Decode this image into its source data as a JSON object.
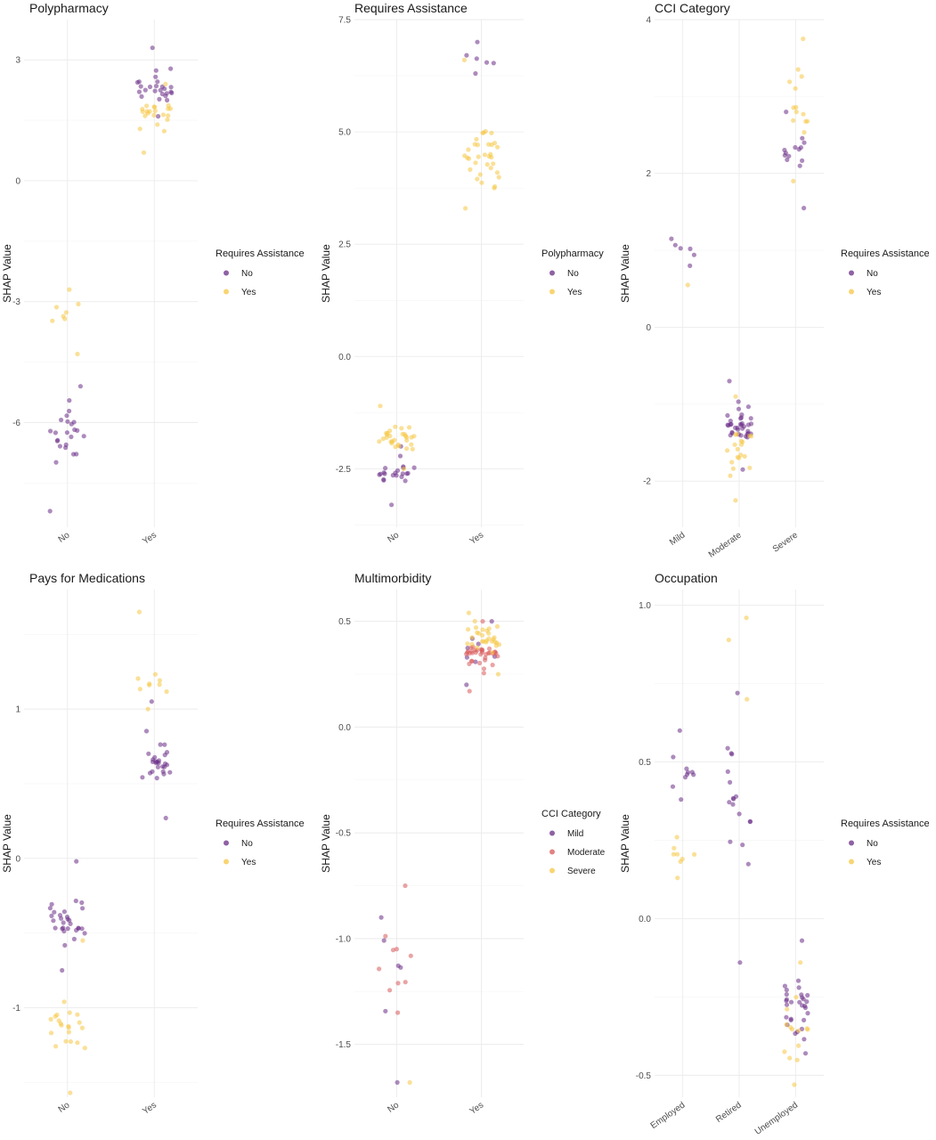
{
  "palette": {
    "purple": "#6a2c86",
    "yellow": "#f6c744",
    "salmon": "#d9595b",
    "point_opacity": 0.55
  },
  "axis_title_y": "SHAP Value",
  "chart_data": [
    {
      "type": "scatter",
      "title": "Polypharmacy",
      "ylabel": "SHAP Value",
      "categories": [
        "No",
        "Yes"
      ],
      "ylim": [
        -8.6,
        4.0
      ],
      "yticks": [
        3,
        0,
        -3,
        -6
      ],
      "ytick_labels": [
        "3",
        "0",
        "-3",
        "-6"
      ],
      "legend": {
        "title": "Requires Assistance",
        "items": [
          "No",
          "Yes"
        ],
        "colors": [
          "#6a2c86",
          "#f6c744"
        ]
      },
      "series": [
        {
          "category": "No",
          "group": "No",
          "n": 24,
          "ymin": -8.2,
          "ymax": -5.1,
          "center": -6.2
        },
        {
          "category": "No",
          "group": "Yes",
          "n": 8,
          "ymin": -4.3,
          "ymax": -2.7,
          "center": -3.2
        },
        {
          "category": "Yes",
          "group": "No",
          "n": 26,
          "ymin": 1.6,
          "ymax": 3.3,
          "center": 2.3
        },
        {
          "category": "Yes",
          "group": "Yes",
          "n": 22,
          "ymin": 0.7,
          "ymax": 2.4,
          "center": 1.6
        }
      ]
    },
    {
      "type": "scatter",
      "title": "Requires Assistance",
      "ylabel": "SHAP Value",
      "categories": [
        "No",
        "Yes"
      ],
      "ylim": [
        -3.8,
        7.5
      ],
      "yticks": [
        7.5,
        5.0,
        2.5,
        0.0,
        -2.5
      ],
      "ytick_labels": [
        "7.5",
        "5.0",
        "2.5",
        "0.0",
        "-2.5"
      ],
      "legend": {
        "title": "Polypharmacy",
        "items": [
          "No",
          "Yes"
        ],
        "colors": [
          "#6a2c86",
          "#f6c744"
        ]
      },
      "series": [
        {
          "category": "No",
          "group": "No",
          "n": 22,
          "ymin": -3.3,
          "ymax": -2.0,
          "center": -2.6
        },
        {
          "category": "No",
          "group": "Yes",
          "n": 30,
          "ymin": -2.5,
          "ymax": -1.1,
          "center": -1.8
        },
        {
          "category": "Yes",
          "group": "No",
          "n": 6,
          "ymin": 6.3,
          "ymax": 7.0,
          "center": 6.6
        },
        {
          "category": "Yes",
          "group": "Yes",
          "n": 34,
          "ymin": 3.3,
          "ymax": 6.6,
          "center": 4.6
        }
      ]
    },
    {
      "type": "scatter",
      "title": "CCI Category",
      "ylabel": "SHAP Value",
      "categories": [
        "Mild",
        "Moderate",
        "Severe"
      ],
      "ylim": [
        -2.6,
        4.0
      ],
      "yticks": [
        4,
        2,
        0,
        -2
      ],
      "ytick_labels": [
        "4",
        "2",
        "0",
        "-2"
      ],
      "legend": {
        "title": "Requires Assistance",
        "items": [
          "No",
          "Yes"
        ],
        "colors": [
          "#6a2c86",
          "#f6c744"
        ]
      },
      "series": [
        {
          "category": "Mild",
          "group": "No",
          "n": 6,
          "ymin": 0.8,
          "ymax": 1.15,
          "center": 1.0
        },
        {
          "category": "Mild",
          "group": "Yes",
          "n": 1,
          "ymin": 0.55,
          "ymax": 0.55,
          "center": 0.55
        },
        {
          "category": "Moderate",
          "group": "No",
          "n": 36,
          "ymin": -1.85,
          "ymax": -0.7,
          "center": -1.25
        },
        {
          "category": "Moderate",
          "group": "Yes",
          "n": 20,
          "ymin": -2.25,
          "ymax": -0.9,
          "center": -1.6
        },
        {
          "category": "Severe",
          "group": "No",
          "n": 14,
          "ymin": 1.55,
          "ymax": 2.8,
          "center": 2.3
        },
        {
          "category": "Severe",
          "group": "Yes",
          "n": 14,
          "ymin": 1.9,
          "ymax": 3.75,
          "center": 2.9
        }
      ]
    },
    {
      "type": "scatter",
      "title": "Pays for Medications",
      "ylabel": "SHAP Value",
      "categories": [
        "No",
        "Yes"
      ],
      "ylim": [
        -1.6,
        1.8
      ],
      "yticks": [
        1,
        0,
        -1
      ],
      "ytick_labels": [
        "1",
        "0",
        "-1"
      ],
      "legend": {
        "title": "Requires Assistance",
        "items": [
          "No",
          "Yes"
        ],
        "colors": [
          "#6a2c86",
          "#f6c744"
        ]
      },
      "series": [
        {
          "category": "No",
          "group": "No",
          "n": 30,
          "ymin": -0.75,
          "ymax": -0.02,
          "center": -0.42
        },
        {
          "category": "No",
          "group": "Yes",
          "n": 22,
          "ymin": -1.57,
          "ymax": -0.55,
          "center": -1.1
        },
        {
          "category": "Yes",
          "group": "No",
          "n": 28,
          "ymin": 0.27,
          "ymax": 1.05,
          "center": 0.65
        },
        {
          "category": "Yes",
          "group": "Yes",
          "n": 10,
          "ymin": 1.0,
          "ymax": 1.65,
          "center": 1.2
        }
      ]
    },
    {
      "type": "scatter",
      "title": "Multimorbidity",
      "ylabel": "SHAP Value",
      "categories": [
        "No",
        "Yes"
      ],
      "ylim": [
        -1.75,
        0.65
      ],
      "yticks": [
        0.5,
        0.0,
        -0.5,
        -1.0,
        -1.5
      ],
      "ytick_labels": [
        "0.5",
        "0.0",
        "-0.5",
        "-1.0",
        "-1.5"
      ],
      "legend": {
        "title": "CCI Category",
        "items": [
          "Mild",
          "Moderate",
          "Severe"
        ],
        "colors": [
          "#6a2c86",
          "#d9595b",
          "#f6c744"
        ]
      },
      "series": [
        {
          "category": "No",
          "group": "Mild",
          "n": 6,
          "ymin": -1.68,
          "ymax": -0.9,
          "center": -1.2
        },
        {
          "category": "No",
          "group": "Moderate",
          "n": 10,
          "ymin": -1.35,
          "ymax": -0.75,
          "center": -1.1
        },
        {
          "category": "No",
          "group": "Severe",
          "n": 1,
          "ymin": -1.68,
          "ymax": -1.68,
          "center": -1.68
        },
        {
          "category": "Yes",
          "group": "Mild",
          "n": 8,
          "ymin": 0.2,
          "ymax": 0.5,
          "center": 0.38
        },
        {
          "category": "Yes",
          "group": "Moderate",
          "n": 36,
          "ymin": 0.17,
          "ymax": 0.5,
          "center": 0.33
        },
        {
          "category": "Yes",
          "group": "Severe",
          "n": 30,
          "ymin": 0.25,
          "ymax": 0.54,
          "center": 0.42
        }
      ]
    },
    {
      "type": "scatter",
      "title": "Occupation",
      "ylabel": "SHAP Value",
      "categories": [
        "Employed",
        "Retired",
        "Unemployed"
      ],
      "ylim": [
        -0.57,
        1.05
      ],
      "yticks": [
        1.0,
        0.5,
        0.0,
        -0.5
      ],
      "ytick_labels": [
        "1.0",
        "0.5",
        "0.0",
        "-0.5"
      ],
      "legend": {
        "title": "Requires Assistance",
        "items": [
          "No",
          "Yes"
        ],
        "colors": [
          "#6a2c86",
          "#f6c744"
        ]
      },
      "series": [
        {
          "category": "Employed",
          "group": "No",
          "n": 10,
          "ymin": 0.38,
          "ymax": 0.6,
          "center": 0.47
        },
        {
          "category": "Employed",
          "group": "Yes",
          "n": 8,
          "ymin": 0.13,
          "ymax": 0.26,
          "center": 0.2
        },
        {
          "category": "Retired",
          "group": "No",
          "n": 18,
          "ymin": -0.14,
          "ymax": 0.72,
          "center": 0.4
        },
        {
          "category": "Retired",
          "group": "Yes",
          "n": 3,
          "ymin": 0.7,
          "ymax": 0.96,
          "center": 0.9
        },
        {
          "category": "Unemployed",
          "group": "No",
          "n": 30,
          "ymin": -0.43,
          "ymax": -0.07,
          "center": -0.28
        },
        {
          "category": "Unemployed",
          "group": "Yes",
          "n": 14,
          "ymin": -0.53,
          "ymax": -0.14,
          "center": -0.35
        }
      ]
    }
  ]
}
